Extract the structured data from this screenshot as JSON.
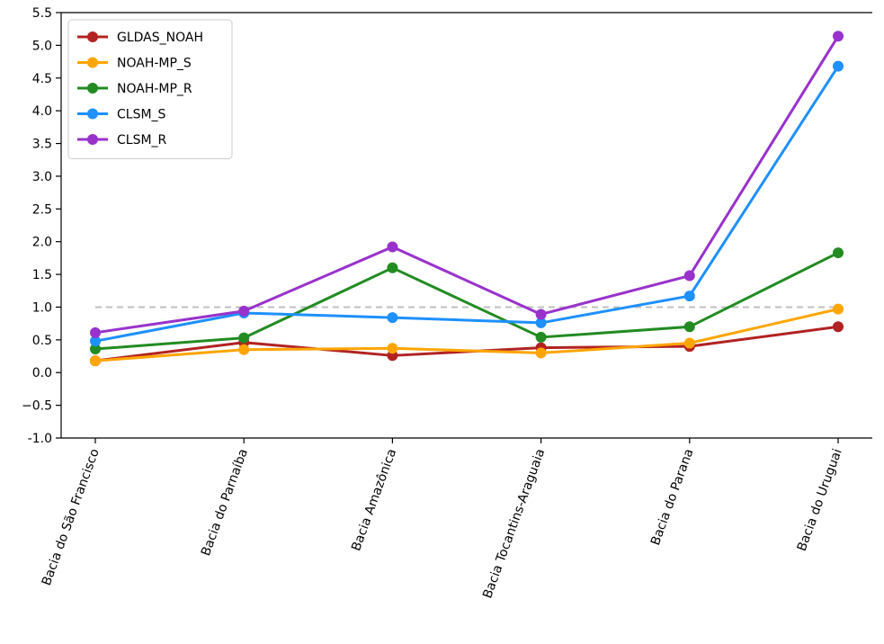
{
  "chart_data": {
    "type": "line",
    "title": "",
    "xlabel": "",
    "ylabel": "",
    "categories": [
      "Bacia do São Francisco",
      "Bacia do Parnaíba",
      "Bacia Amazônica",
      "Bacia Tocantins-Araguaia",
      "Bacia do Parana",
      "Bacia do Uruguai"
    ],
    "ylim": [
      -1.0,
      5.5
    ],
    "yticks": [
      "-1.0",
      "−0.5",
      "0.0",
      "0.5",
      "1.0",
      "1.5",
      "2.0",
      "2.5",
      "3.0",
      "3.5",
      "4.0",
      "4.5",
      "5.0",
      "5.5"
    ],
    "ytick_values": [
      -1.0,
      -0.5,
      0.0,
      0.5,
      1.0,
      1.5,
      2.0,
      2.5,
      3.0,
      3.5,
      4.0,
      4.5,
      5.0,
      5.5
    ],
    "reference_line": {
      "y": 1.0,
      "style": "dashed",
      "color": "#bfbfbf"
    },
    "grid": false,
    "legend_position": "top-left",
    "series": [
      {
        "name": "GLDAS_NOAH",
        "color": "#b22222",
        "values": [
          0.18,
          0.46,
          0.26,
          0.38,
          0.4,
          0.7
        ]
      },
      {
        "name": "NOAH-MP_S",
        "color": "#ffa500",
        "values": [
          0.18,
          0.35,
          0.37,
          0.3,
          0.45,
          0.97
        ]
      },
      {
        "name": "NOAH-MP_R",
        "color": "#228b22",
        "values": [
          0.36,
          0.53,
          1.6,
          0.54,
          0.7,
          1.83
        ]
      },
      {
        "name": "CLSM_S",
        "color": "#1e90ff",
        "values": [
          0.48,
          0.91,
          0.84,
          0.76,
          1.17,
          4.68
        ]
      },
      {
        "name": "CLSM_R",
        "color": "#9932cc",
        "values": [
          0.61,
          0.94,
          1.92,
          0.89,
          1.48,
          5.14
        ]
      }
    ]
  }
}
